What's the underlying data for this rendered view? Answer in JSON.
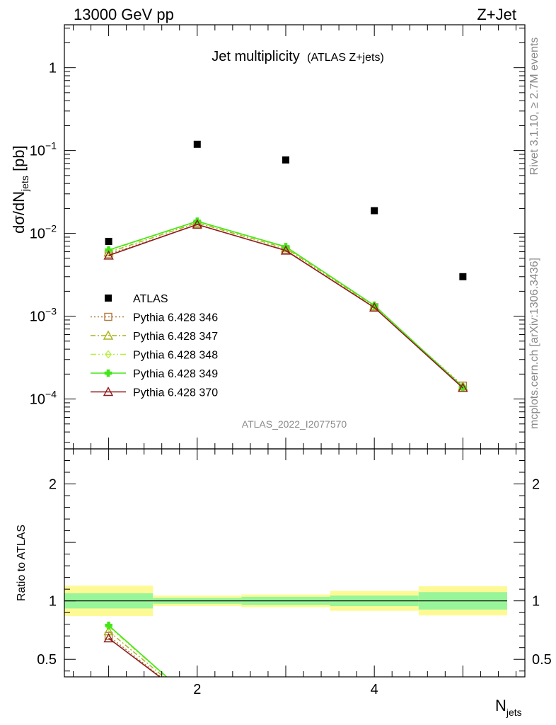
{
  "header": {
    "left": "13000 GeV pp",
    "right": "Z+Jet"
  },
  "side_text": {
    "rivet": "Rivet 3.1.10, ≥ 2.7M events",
    "source": "mcplots.cern.ch [arXiv:1306.3436]"
  },
  "watermark": "ATLAS_2022_I2077570",
  "colors": {
    "data": "#000000",
    "py346": "#b07a3e",
    "py347": "#a8b21a",
    "py348": "#b4ee3c",
    "py349": "#44e61a",
    "py370": "#8e1b1b",
    "band_inner": "#99f599",
    "band_outer": "#fdfa96"
  },
  "chart_data": [
    {
      "type": "scatter",
      "panel": "main",
      "title": "Jet multiplicity",
      "title_sub": "(ATLAS Z+jets)",
      "ylabel_main": "dσ/dN",
      "ylabel_sub": "jets",
      "ylabel_unit": " [pb]",
      "xlabel_main": "N",
      "xlabel_sub": "jets",
      "yscale": "log",
      "xlim": [
        0.5,
        5.7
      ],
      "ylim": [
        2.5e-05,
        3.3
      ],
      "x": [
        1,
        2,
        3,
        4,
        5
      ],
      "series": [
        {
          "name": "ATLAS",
          "style": "data",
          "values": [
            0.008,
            0.119,
            0.077,
            0.0188,
            0.003
          ]
        },
        {
          "name": "Pythia 6.428 346",
          "style": "py346",
          "values": [
            0.0056,
            0.0127,
            0.0063,
            0.00128,
            0.000145
          ]
        },
        {
          "name": "Pythia 6.428 347",
          "style": "py347",
          "values": [
            0.0059,
            0.0134,
            0.0066,
            0.00132,
            0.000142
          ]
        },
        {
          "name": "Pythia 6.428 348",
          "style": "py348",
          "values": [
            0.0062,
            0.0138,
            0.0068,
            0.00134,
            0.00014
          ]
        },
        {
          "name": "Pythia 6.428 349",
          "style": "py349",
          "values": [
            0.0063,
            0.014,
            0.0069,
            0.00135,
            0.000139
          ]
        },
        {
          "name": "Pythia 6.428 370",
          "style": "py370",
          "values": [
            0.0054,
            0.0128,
            0.0062,
            0.00127,
            0.000136
          ]
        }
      ],
      "yticks": [
        {
          "base": "10",
          "exp": "−4",
          "v": 0.0001
        },
        {
          "base": "10",
          "exp": "−3",
          "v": 0.001
        },
        {
          "base": "10",
          "exp": "−2",
          "v": 0.01
        },
        {
          "base": "10",
          "exp": "−1",
          "v": 0.1
        },
        {
          "base": "1",
          "exp": "",
          "v": 1
        }
      ],
      "xticks": [
        {
          "label": "2",
          "v": 2
        },
        {
          "label": "4",
          "v": 4
        }
      ],
      "legend_position": "left-middle"
    },
    {
      "type": "line",
      "panel": "ratio",
      "ylabel": "Ratio to ATLAS",
      "ylim": [
        0.35,
        2.3
      ],
      "ytick_labels": [
        {
          "label": "0.5",
          "v": 0.5
        },
        {
          "label": "1",
          "v": 1
        },
        {
          "label": "2",
          "v": 2
        }
      ],
      "band_bins": [
        [
          0.5,
          1.5
        ],
        [
          1.5,
          2.5
        ],
        [
          2.5,
          3.5
        ],
        [
          3.5,
          4.5
        ],
        [
          4.5,
          5.5
        ]
      ],
      "band_inner": [
        [
          0.935,
          1.065
        ],
        [
          0.975,
          1.025
        ],
        [
          0.965,
          1.035
        ],
        [
          0.955,
          1.045
        ],
        [
          0.925,
          1.075
        ]
      ],
      "band_outer": [
        [
          0.87,
          1.13
        ],
        [
          0.955,
          1.045
        ],
        [
          0.945,
          1.055
        ],
        [
          0.915,
          1.085
        ],
        [
          0.875,
          1.125
        ]
      ],
      "ratio_x": [
        1,
        2
      ],
      "ratio_series": [
        {
          "style": "py346",
          "values": [
            0.7,
            0.107
          ]
        },
        {
          "style": "py347",
          "values": [
            0.74,
            0.113
          ]
        },
        {
          "style": "py348",
          "values": [
            0.78,
            0.116
          ]
        },
        {
          "style": "py349",
          "values": [
            0.79,
            0.118
          ]
        },
        {
          "style": "py370",
          "values": [
            0.68,
            0.108
          ]
        }
      ]
    }
  ]
}
